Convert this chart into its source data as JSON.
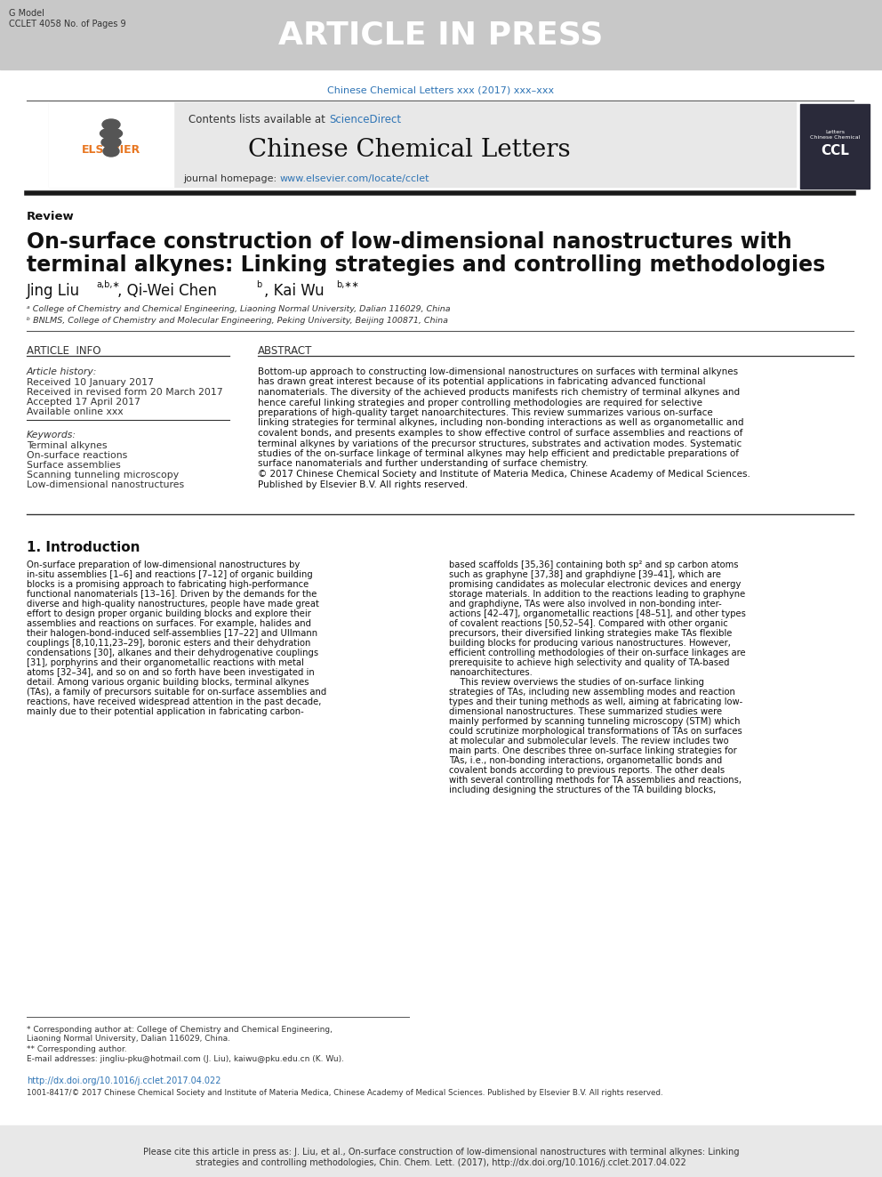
{
  "page_bg": "#ffffff",
  "header_bar_color": "#c8c8c8",
  "header_bar_text": "ARTICLE IN PRESS",
  "header_bar_text_color": "#ffffff",
  "g_model_text": "G Model\nCCLET 4058 No. of Pages 9",
  "journal_ref_text": "Chinese Chemical Letters xxx (2017) xxx–xxx",
  "journal_ref_color": "#2E74B5",
  "contents_bg": "#e8e8e8",
  "contents_text": "Contents lists available at ",
  "sciencedirect_text": "ScienceDirect",
  "sciencedirect_color": "#2E74B5",
  "journal_name": "Chinese Chemical Letters",
  "journal_homepage_text": "journal homepage: ",
  "journal_homepage_url": "www.elsevier.com/locate/cclet",
  "journal_homepage_url_color": "#2E74B5",
  "section_label": "Review",
  "article_title_line1": "On-surface construction of low-dimensional nanostructures with",
  "article_title_line2": "terminal alkynes: Linking strategies and controlling methodologies",
  "affil_a": "ᵃ College of Chemistry and Chemical Engineering, Liaoning Normal University, Dalian 116029, China",
  "affil_b": "ᵇ BNLMS, College of Chemistry and Molecular Engineering, Peking University, Beijing 100871, China",
  "article_info_header": "ARTICLE  INFO",
  "abstract_header": "ABSTRACT",
  "article_history_label": "Article history:",
  "received": "Received 10 January 2017",
  "revised": "Received in revised form 20 March 2017",
  "accepted": "Accepted 17 April 2017",
  "available": "Available online xxx",
  "keywords_label": "Keywords:",
  "keyword1": "Terminal alkynes",
  "keyword2": "On-surface reactions",
  "keyword3": "Surface assemblies",
  "keyword4": "Scanning tunneling microscopy",
  "keyword5": "Low-dimensional nanostructures",
  "abstract_text": "Bottom-up approach to constructing low-dimensional nanostructures on surfaces with terminal alkynes\nhas drawn great interest because of its potential applications in fabricating advanced functional\nnanomaterials. The diversity of the achieved products manifests rich chemistry of terminal alkynes and\nhence careful linking strategies and proper controlling methodologies are required for selective\npreparations of high-quality target nanoarchitectures. This review summarizes various on-surface\nlinking strategies for terminal alkynes, including non-bonding interactions as well as organometallic and\ncovalent bonds, and presents examples to show effective control of surface assemblies and reactions of\nterminal alkynes by variations of the precursor structures, substrates and activation modes. Systematic\nstudies of the on-surface linkage of terminal alkynes may help efficient and predictable preparations of\nsurface nanomaterials and further understanding of surface chemistry.\n© 2017 Chinese Chemical Society and Institute of Materia Medica, Chinese Academy of Medical Sciences.\nPublished by Elsevier B.V. All rights reserved.",
  "intro_header": "1. Introduction",
  "intro_text_col1": "On-surface preparation of low-dimensional nanostructures by\nin-situ assemblies [1–6] and reactions [7–12] of organic building\nblocks is a promising approach to fabricating high-performance\nfunctional nanomaterials [13–16]. Driven by the demands for the\ndiverse and high-quality nanostructures, people have made great\neffort to design proper organic building blocks and explore their\nassemblies and reactions on surfaces. For example, halides and\ntheir halogen-bond-induced self-assemblies [17–22] and Ullmann\ncouplings [8,10,11,23–29], boronic esters and their dehydration\ncondensations [30], alkanes and their dehydrogenative couplings\n[31], porphyrins and their organometallic reactions with metal\natoms [32–34], and so on and so forth have been investigated in\ndetail. Among various organic building blocks, terminal alkynes\n(TAs), a family of precursors suitable for on-surface assemblies and\nreactions, have received widespread attention in the past decade,\nmainly due to their potential application in fabricating carbon-",
  "intro_text_col2": "based scaffolds [35,36] containing both sp² and sp carbon atoms\nsuch as graphyne [37,38] and graphdiyne [39–41], which are\npromising candidates as molecular electronic devices and energy\nstorage materials. In addition to the reactions leading to graphyne\nand graphdiyne, TAs were also involved in non-bonding inter-\nactions [42–47], organometallic reactions [48–51], and other types\nof covalent reactions [50,52–54]. Compared with other organic\nprecursors, their diversified linking strategies make TAs flexible\nbuilding blocks for producing various nanostructures. However,\nefficient controlling methodologies of their on-surface linkages are\nprerequisite to achieve high selectivity and quality of TA-based\nnanoarchitectures.\n    This review overviews the studies of on-surface linking\nstrategies of TAs, including new assembling modes and reaction\ntypes and their tuning methods as well, aiming at fabricating low-\ndimensional nanostructures. These summarized studies were\nmainly performed by scanning tunneling microscopy (STM) which\ncould scrutinize morphological transformations of TAs on surfaces\nat molecular and submolecular levels. The review includes two\nmain parts. One describes three on-surface linking strategies for\nTAs, i.e., non-bonding interactions, organometallic bonds and\ncovalent bonds according to previous reports. The other deals\nwith several controlling methods for TA assemblies and reactions,\nincluding designing the structures of the TA building blocks,",
  "footnote_star": "* Corresponding author at: College of Chemistry and Chemical Engineering,\nLiaoning Normal University, Dalian 116029, China.",
  "footnote_dstar": "** Corresponding author.",
  "footnote_email": "E-mail addresses: jingliu-pku@hotmail.com (J. Liu), kaiwu@pku.edu.cn (K. Wu).",
  "doi_text": "http://dx.doi.org/10.1016/j.cclet.2017.04.022",
  "doi_color": "#2E74B5",
  "issn_text": "1001-8417/© 2017 Chinese Chemical Society and Institute of Materia Medica, Chinese Academy of Medical Sciences. Published by Elsevier B.V. All rights reserved.",
  "bottom_bar_text": "Please cite this article in press as: J. Liu, et al., On-surface construction of low-dimensional nanostructures with terminal alkynes: Linking\nstrategies and controlling methodologies, Chin. Chem. Lett. (2017), http://dx.doi.org/10.1016/j.cclet.2017.04.022",
  "bottom_bar_bg": "#e8e8e8",
  "bottom_bar_text_color": "#333333"
}
